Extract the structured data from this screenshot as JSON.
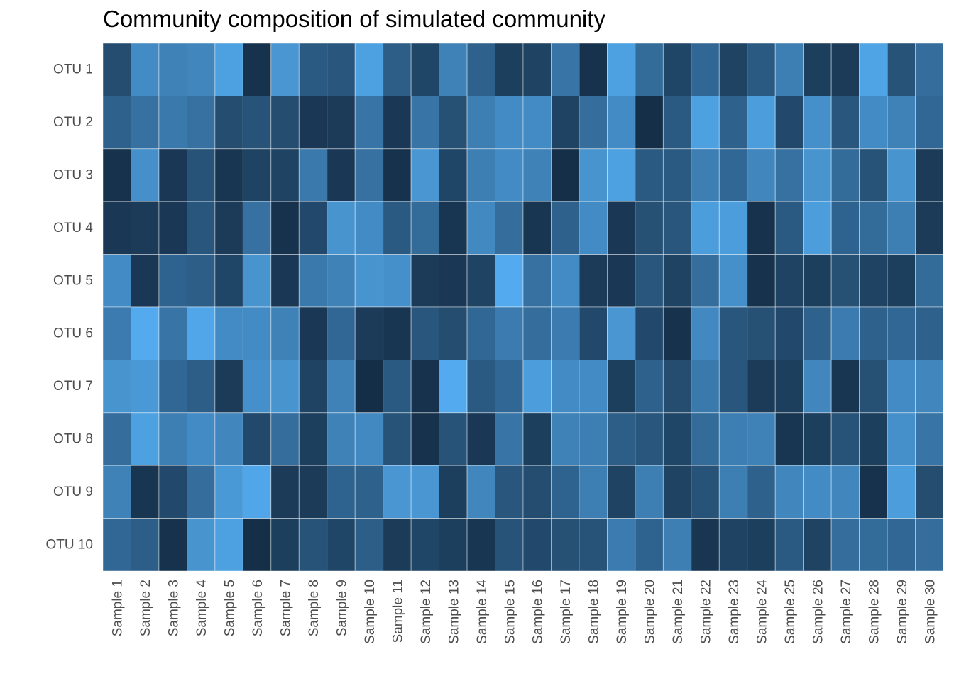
{
  "chart_data": {
    "type": "heatmap",
    "title": "Community composition of simulated community",
    "xlabel": "",
    "ylabel": "",
    "legend": "none",
    "grid": false,
    "columns": [
      "Sample 1",
      "Sample 2",
      "Sample 3",
      "Sample 4",
      "Sample 5",
      "Sample 6",
      "Sample 7",
      "Sample 8",
      "Sample 9",
      "Sample 10",
      "Sample 11",
      "Sample 12",
      "Sample 13",
      "Sample 14",
      "Sample 15",
      "Sample 16",
      "Sample 17",
      "Sample 18",
      "Sample 19",
      "Sample 20",
      "Sample 21",
      "Sample 22",
      "Sample 23",
      "Sample 24",
      "Sample 25",
      "Sample 26",
      "Sample 27",
      "Sample 28",
      "Sample 29",
      "Sample 30"
    ],
    "rows": [
      "OTU 1",
      "OTU 2",
      "OTU 3",
      "OTU 4",
      "OTU 5",
      "OTU 6",
      "OTU 7",
      "OTU 8",
      "OTU 9",
      "OTU 10"
    ],
    "value_range": [
      0,
      1
    ],
    "color_low": "#132B43",
    "color_high": "#56B1F7",
    "values": [
      [
        0.25,
        0.72,
        0.65,
        0.68,
        0.88,
        0.05,
        0.8,
        0.35,
        0.32,
        0.88,
        0.38,
        0.2,
        0.65,
        0.4,
        0.15,
        0.18,
        0.55,
        0.05,
        0.88,
        0.48,
        0.2,
        0.45,
        0.18,
        0.35,
        0.62,
        0.15,
        0.12,
        0.9,
        0.3,
        0.5
      ],
      [
        0.4,
        0.52,
        0.58,
        0.52,
        0.25,
        0.3,
        0.25,
        0.1,
        0.12,
        0.55,
        0.1,
        0.55,
        0.28,
        0.62,
        0.72,
        0.72,
        0.18,
        0.5,
        0.72,
        0.03,
        0.35,
        0.88,
        0.4,
        0.85,
        0.22,
        0.75,
        0.32,
        0.72,
        0.65,
        0.45
      ],
      [
        0.05,
        0.75,
        0.1,
        0.3,
        0.08,
        0.18,
        0.18,
        0.58,
        0.1,
        0.52,
        0.05,
        0.8,
        0.2,
        0.62,
        0.72,
        0.65,
        0.03,
        0.78,
        0.88,
        0.35,
        0.35,
        0.62,
        0.45,
        0.68,
        0.52,
        0.78,
        0.48,
        0.3,
        0.78,
        0.12
      ],
      [
        0.1,
        0.12,
        0.1,
        0.32,
        0.12,
        0.52,
        0.05,
        0.22,
        0.78,
        0.72,
        0.35,
        0.48,
        0.08,
        0.7,
        0.5,
        0.08,
        0.4,
        0.72,
        0.1,
        0.28,
        0.32,
        0.85,
        0.85,
        0.05,
        0.35,
        0.85,
        0.42,
        0.48,
        0.62,
        0.12
      ],
      [
        0.72,
        0.1,
        0.42,
        0.38,
        0.2,
        0.78,
        0.1,
        0.58,
        0.65,
        0.78,
        0.75,
        0.12,
        0.1,
        0.18,
        0.95,
        0.52,
        0.72,
        0.12,
        0.1,
        0.32,
        0.18,
        0.5,
        0.75,
        0.05,
        0.18,
        0.15,
        0.28,
        0.18,
        0.15,
        0.48
      ],
      [
        0.6,
        0.95,
        0.55,
        0.92,
        0.72,
        0.72,
        0.65,
        0.1,
        0.45,
        0.12,
        0.08,
        0.32,
        0.25,
        0.45,
        0.6,
        0.5,
        0.6,
        0.22,
        0.8,
        0.22,
        0.05,
        0.7,
        0.32,
        0.28,
        0.22,
        0.4,
        0.6,
        0.4,
        0.45,
        0.4
      ],
      [
        0.78,
        0.82,
        0.45,
        0.38,
        0.12,
        0.75,
        0.78,
        0.18,
        0.65,
        0.02,
        0.35,
        0.05,
        0.95,
        0.35,
        0.45,
        0.85,
        0.72,
        0.72,
        0.15,
        0.4,
        0.25,
        0.58,
        0.32,
        0.12,
        0.15,
        0.68,
        0.08,
        0.28,
        0.72,
        0.68
      ],
      [
        0.5,
        0.88,
        0.62,
        0.72,
        0.68,
        0.22,
        0.5,
        0.15,
        0.65,
        0.7,
        0.3,
        0.05,
        0.3,
        0.1,
        0.55,
        0.15,
        0.65,
        0.62,
        0.38,
        0.32,
        0.2,
        0.48,
        0.62,
        0.65,
        0.08,
        0.15,
        0.3,
        0.15,
        0.75,
        0.55
      ],
      [
        0.65,
        0.08,
        0.22,
        0.5,
        0.82,
        0.92,
        0.12,
        0.12,
        0.42,
        0.4,
        0.8,
        0.8,
        0.15,
        0.68,
        0.32,
        0.25,
        0.42,
        0.62,
        0.18,
        0.62,
        0.18,
        0.3,
        0.62,
        0.4,
        0.68,
        0.72,
        0.68,
        0.05,
        0.85,
        0.25
      ],
      [
        0.45,
        0.38,
        0.05,
        0.78,
        0.88,
        0.03,
        0.15,
        0.3,
        0.2,
        0.38,
        0.12,
        0.2,
        0.15,
        0.08,
        0.3,
        0.22,
        0.28,
        0.3,
        0.6,
        0.42,
        0.62,
        0.08,
        0.18,
        0.15,
        0.35,
        0.18,
        0.5,
        0.48,
        0.45,
        0.5
      ]
    ]
  }
}
